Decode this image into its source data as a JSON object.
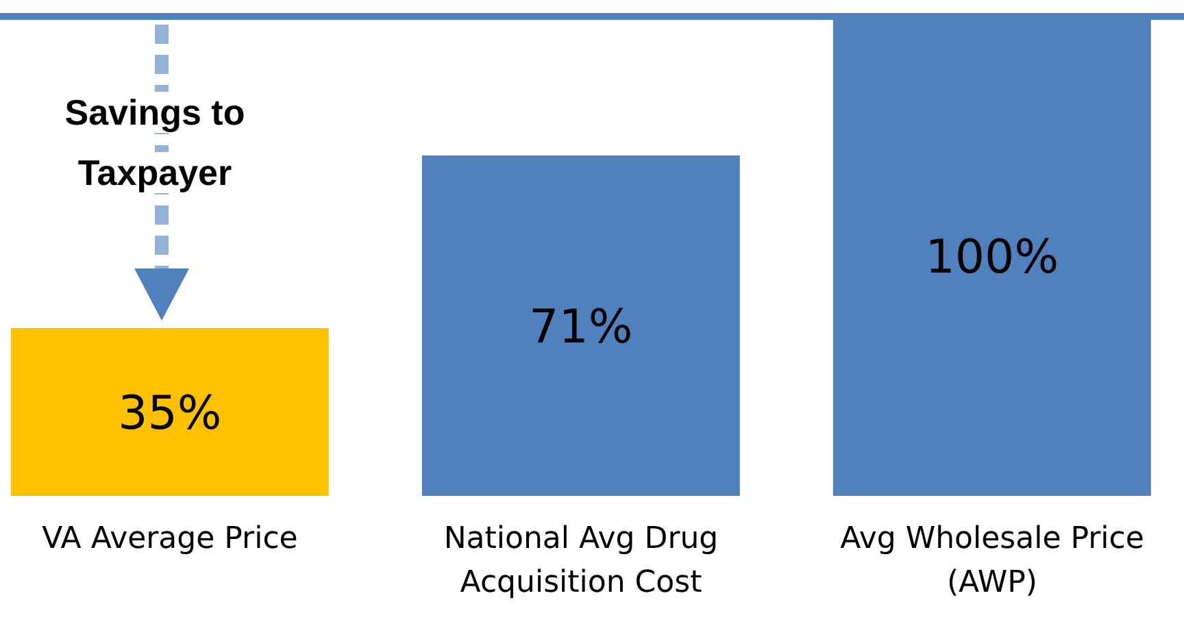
{
  "chart_data": {
    "type": "bar",
    "categories": [
      "VA Average Price",
      "National Avg Drug Acquisition Cost",
      "Avg Wholesale Price (AWP)"
    ],
    "values": [
      35,
      71,
      100
    ],
    "colors": [
      "#ffc000",
      "#4f81bd",
      "#4f81bd"
    ],
    "value_labels": [
      "35%",
      "71%",
      "100%"
    ],
    "ref_lines": [
      {
        "axis": "y",
        "value": 100,
        "color": "#4f81bd"
      }
    ],
    "annotations": [
      "Savings to Taxpayer"
    ],
    "grid": false,
    "legend": false
  }
}
